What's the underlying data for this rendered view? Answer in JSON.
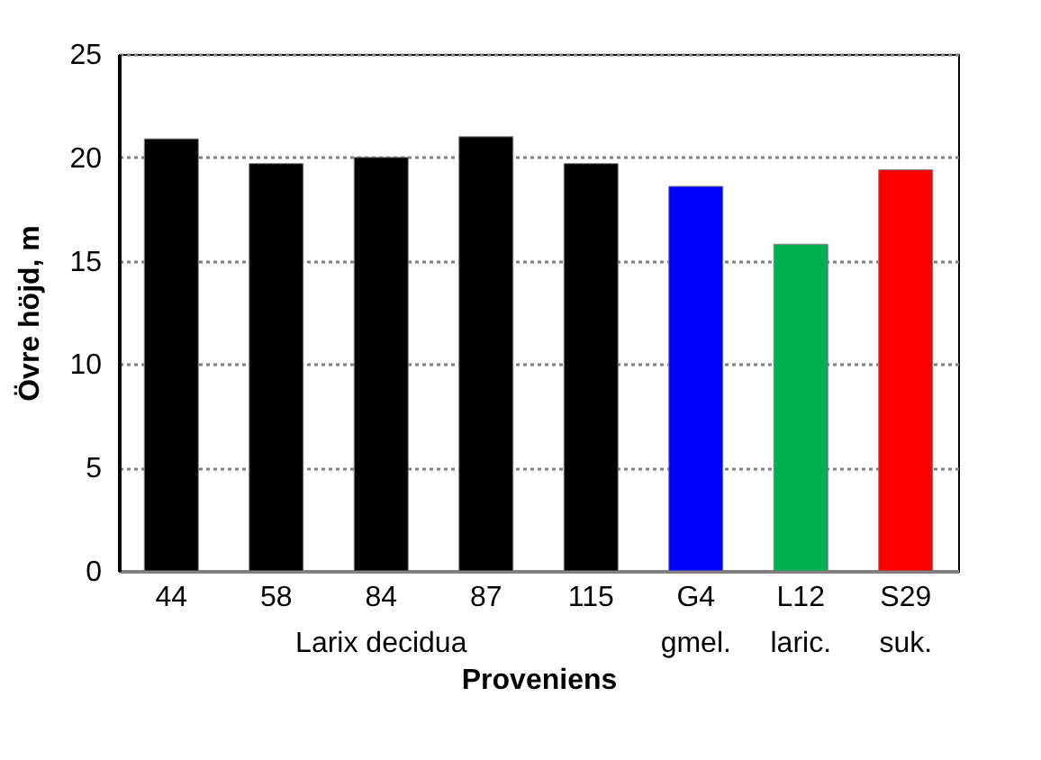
{
  "chart_data": {
    "type": "bar",
    "xlabel": "Proveniens",
    "ylabel": "Övre höjd, m",
    "categories": [
      "44",
      "58",
      "84",
      "87",
      "115",
      "G4",
      "L12",
      "S29"
    ],
    "values": [
      20.9,
      19.7,
      20.0,
      21.0,
      19.7,
      18.6,
      15.8,
      19.4
    ],
    "colors": [
      "#000000",
      "#000000",
      "#000000",
      "#000000",
      "#000000",
      "#0000ff",
      "#00b050",
      "#ff0000"
    ],
    "ylim": [
      0,
      25
    ],
    "yticks": [
      0,
      5,
      10,
      15,
      20,
      25
    ],
    "grid": "y",
    "annotations": [
      "Larix decidua",
      "gmel.",
      "laric.",
      "suk."
    ]
  }
}
